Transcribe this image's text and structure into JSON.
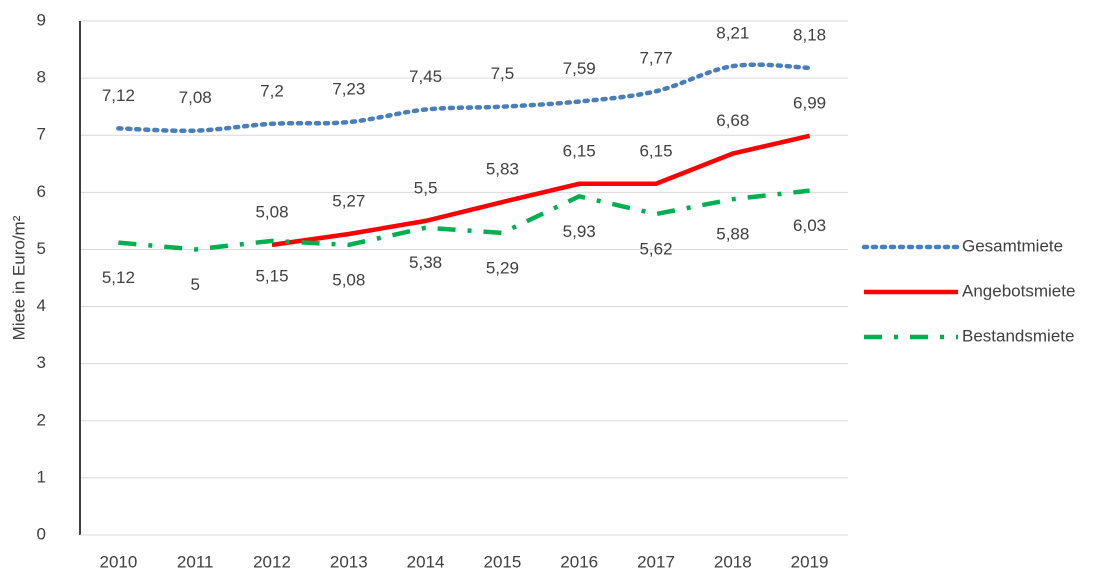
{
  "chart_data": {
    "type": "line",
    "y_label": "Miete in Euro/m²",
    "categories": [
      "2010",
      "2011",
      "2012",
      "2013",
      "2014",
      "2015",
      "2016",
      "2017",
      "2018",
      "2019"
    ],
    "series": [
      {
        "name": "Gesamtmiete",
        "color": "#4a7ebb",
        "line_style": "dotted",
        "smooth": true,
        "label_position": "above",
        "values": [
          7.12,
          7.08,
          7.2,
          7.23,
          7.45,
          7.5,
          7.59,
          7.77,
          8.21,
          8.18
        ],
        "value_labels": [
          "7,12",
          "7,08",
          "7,2",
          "7,23",
          "7,45",
          "7,5",
          "7,59",
          "7,77",
          "8,21",
          "8,18"
        ]
      },
      {
        "name": "Angebotsmiete",
        "color": "#ff0000",
        "line_style": "solid",
        "smooth": false,
        "label_position": "above",
        "values": [
          null,
          null,
          5.08,
          5.27,
          5.5,
          5.83,
          6.15,
          6.15,
          6.68,
          6.99
        ],
        "value_labels": [
          null,
          null,
          "5,08",
          "5,27",
          "5,5",
          "5,83",
          "6,15",
          "6,15",
          "6,68",
          "6,99"
        ]
      },
      {
        "name": "Bestandsmiete",
        "color": "#00b050",
        "line_style": "dashdot",
        "smooth": false,
        "label_position": "below",
        "values": [
          5.12,
          5,
          5.15,
          5.08,
          5.38,
          5.29,
          5.93,
          5.62,
          5.88,
          6.03
        ],
        "value_labels": [
          "5,12",
          "5",
          "5,15",
          "5,08",
          "5,38",
          "5,29",
          "5,93",
          "5,62",
          "5,88",
          "6,03"
        ]
      }
    ],
    "ylim": [
      0,
      9
    ],
    "yticks": [
      0,
      1,
      2,
      3,
      4,
      5,
      6,
      7,
      8,
      9
    ],
    "grid": true,
    "legend": "right"
  }
}
